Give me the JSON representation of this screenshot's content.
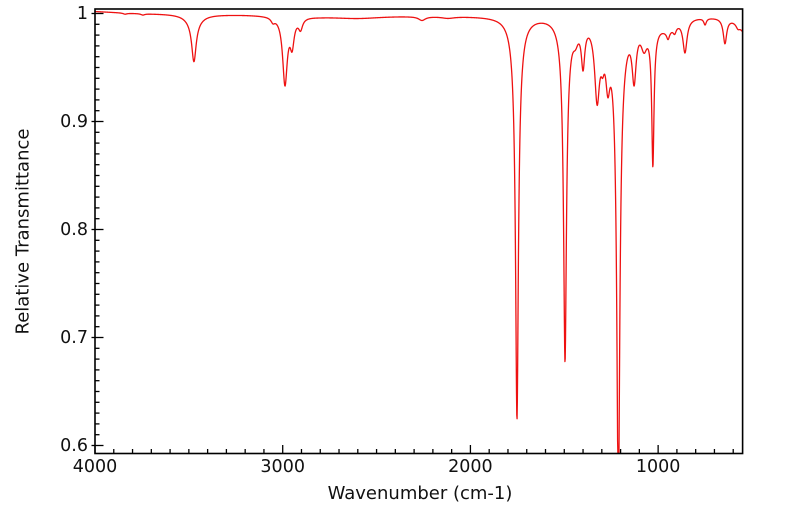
{
  "chart_data": {
    "type": "line",
    "title": "",
    "xlabel": "Wavenumber (cm-1)",
    "ylabel": "Relative Transmittance",
    "description": "Infrared transmittance spectrum, single red trace on white background, x-axis reversed from 4000 to 550 cm-1",
    "line_color": "#ee1111",
    "axis_color": "#000000",
    "background_color": "#ffffff",
    "x_axis": {
      "min": 550,
      "max": 4000,
      "reversed": true,
      "major_ticks": [
        4000,
        3000,
        2000,
        1000
      ],
      "major_tick_labels": [
        "4000",
        "3000",
        "2000",
        "1000"
      ],
      "minor_tick_step": 100,
      "grid": false
    },
    "y_axis": {
      "min": 0.593,
      "max": 1.004,
      "major_ticks": [
        1.0,
        0.9,
        0.8,
        0.7,
        0.6
      ],
      "major_tick_labels": [
        "1",
        "0.9",
        "0.8",
        "0.7",
        "0.6"
      ],
      "minor_tick_step": 0.01,
      "grid": false
    },
    "baseline_anchors": [
      [
        4000,
        1.002
      ],
      [
        3820,
        1.0005
      ],
      [
        3700,
        1.0
      ],
      [
        3200,
        0.999
      ],
      [
        2800,
        0.9975
      ],
      [
        2400,
        0.998
      ],
      [
        1900,
        0.998
      ],
      [
        1500,
        0.9985
      ],
      [
        1000,
        0.9985
      ],
      [
        550,
        0.9985
      ]
    ],
    "peaks": [
      {
        "center": 3840,
        "depth": 0.001,
        "hwhm": 12
      },
      {
        "center": 3745,
        "depth": 0.0012,
        "hwhm": 12
      },
      {
        "center": 3473,
        "depth": 0.036,
        "hwhm": 14
      },
      {
        "center": 3473,
        "depth": 0.008,
        "hwhm": 45
      },
      {
        "center": 3052,
        "depth": 0.004,
        "hwhm": 12
      },
      {
        "center": 2988,
        "depth": 0.062,
        "hwhm": 15
      },
      {
        "center": 2950,
        "depth": 0.024,
        "hwhm": 13
      },
      {
        "center": 2905,
        "depth": 0.01,
        "hwhm": 13
      },
      {
        "center": 2600,
        "depth": 0.002,
        "hwhm": 150
      },
      {
        "center": 2258,
        "depth": 0.0035,
        "hwhm": 22
      },
      {
        "center": 2120,
        "depth": 0.0015,
        "hwhm": 40
      },
      {
        "center": 1752,
        "depth": 0.315,
        "hwhm": 8.5
      },
      {
        "center": 1752,
        "depth": 0.058,
        "hwhm": 24
      },
      {
        "center": 1496,
        "depth": 0.262,
        "hwhm": 8.5
      },
      {
        "center": 1496,
        "depth": 0.055,
        "hwhm": 22
      },
      {
        "center": 1440,
        "depth": 0.012,
        "hwhm": 18
      },
      {
        "center": 1400,
        "depth": 0.038,
        "hwhm": 11
      },
      {
        "center": 1325,
        "depth": 0.068,
        "hwhm": 16
      },
      {
        "center": 1296,
        "depth": 0.02,
        "hwhm": 12
      },
      {
        "center": 1268,
        "depth": 0.042,
        "hwhm": 14
      },
      {
        "center": 1212,
        "depth": 0.38,
        "hwhm": 9
      },
      {
        "center": 1212,
        "depth": 0.07,
        "hwhm": 28
      },
      {
        "center": 1128,
        "depth": 0.048,
        "hwhm": 13
      },
      {
        "center": 1075,
        "depth": 0.02,
        "hwhm": 20
      },
      {
        "center": 1028,
        "depth": 0.118,
        "hwhm": 7
      },
      {
        "center": 1028,
        "depth": 0.012,
        "hwhm": 25
      },
      {
        "center": 950,
        "depth": 0.01,
        "hwhm": 55
      },
      {
        "center": 947,
        "depth": 0.007,
        "hwhm": 9
      },
      {
        "center": 912,
        "depth": 0.006,
        "hwhm": 10
      },
      {
        "center": 857,
        "depth": 0.03,
        "hwhm": 13
      },
      {
        "center": 750,
        "depth": 0.006,
        "hwhm": 8
      },
      {
        "center": 644,
        "depth": 0.023,
        "hwhm": 11
      },
      {
        "center": 575,
        "depth": 0.004,
        "hwhm": 12
      },
      {
        "center": 515,
        "depth": 0.022,
        "hwhm": 45
      }
    ],
    "notable_minima": [
      {
        "wavenumber": 3473,
        "transmittance": 0.955
      },
      {
        "wavenumber": 2988,
        "transmittance": 0.931
      },
      {
        "wavenumber": 2950,
        "transmittance": 0.963
      },
      {
        "wavenumber": 2258,
        "transmittance": 0.996
      },
      {
        "wavenumber": 1752,
        "transmittance": 0.627
      },
      {
        "wavenumber": 1496,
        "transmittance": 0.681
      },
      {
        "wavenumber": 1400,
        "transmittance": 0.956
      },
      {
        "wavenumber": 1325,
        "transmittance": 0.918
      },
      {
        "wavenumber": 1268,
        "transmittance": 0.93
      },
      {
        "wavenumber": 1212,
        "transmittance": "below 0.593 (clipped at bottom axis)"
      },
      {
        "wavenumber": 1128,
        "transmittance": 0.938
      },
      {
        "wavenumber": 1028,
        "transmittance": 0.871
      },
      {
        "wavenumber": 947,
        "transmittance": 0.978
      },
      {
        "wavenumber": 857,
        "transmittance": 0.956
      },
      {
        "wavenumber": 750,
        "transmittance": 0.99
      },
      {
        "wavenumber": 644,
        "transmittance": 0.973
      }
    ]
  }
}
